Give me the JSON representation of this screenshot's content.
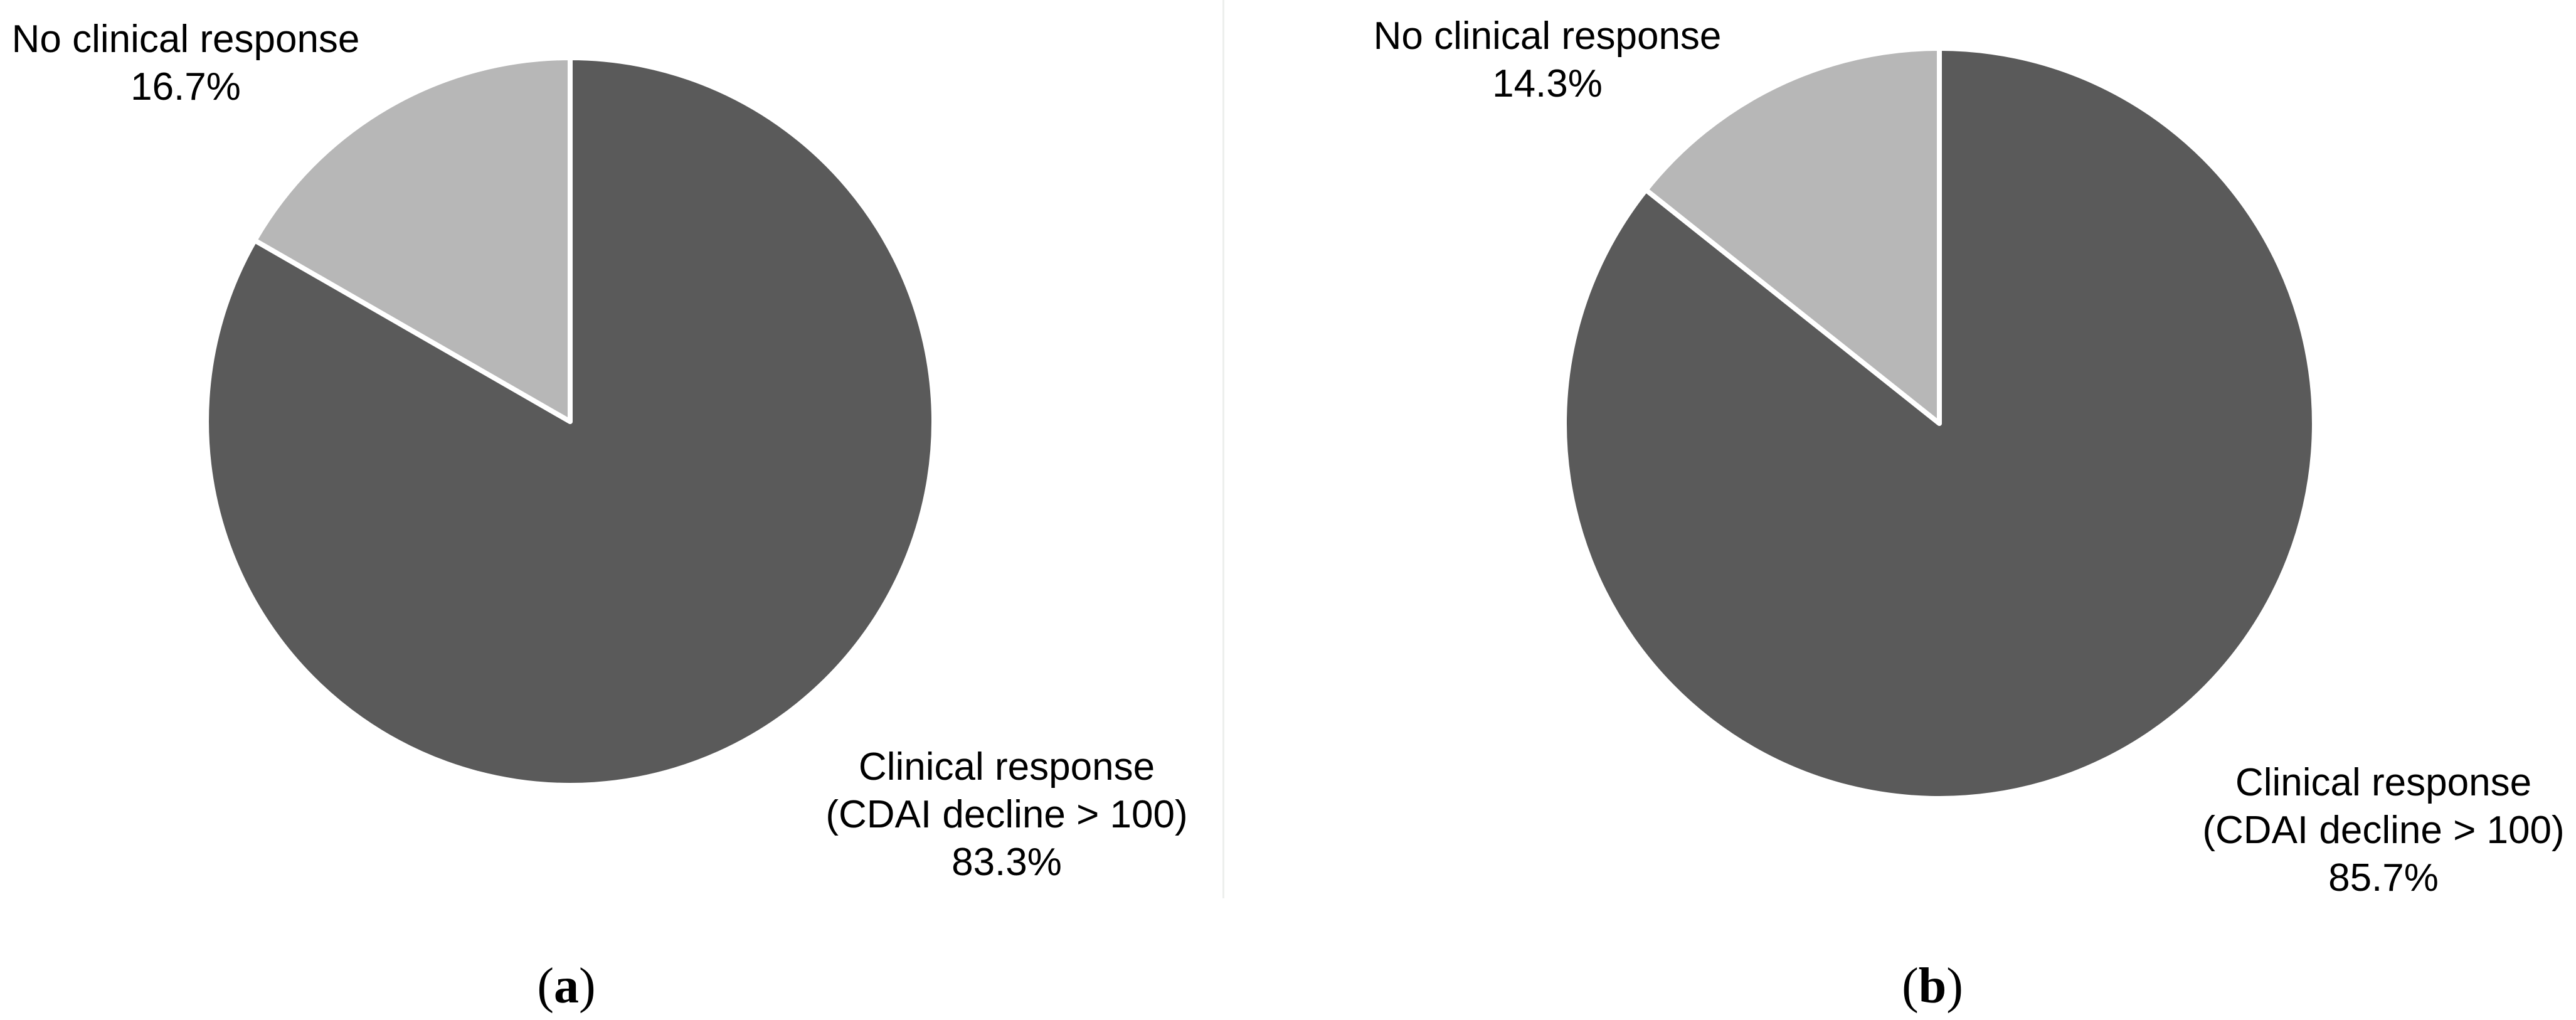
{
  "figure": {
    "background": "#ffffff",
    "panels": [
      {
        "caption": {
          "open": "(",
          "letter": "a",
          "close": ")"
        },
        "labels": [
          {
            "name": "no-clinical-response",
            "lines": [
              "No clinical response",
              "16.7%"
            ]
          },
          {
            "name": "clinical-response",
            "lines": [
              "Clinical response",
              "(CDAI decline > 100)",
              "83.3%"
            ]
          }
        ]
      },
      {
        "caption": {
          "open": "(",
          "letter": "b",
          "close": ")"
        },
        "labels": [
          {
            "name": "no-clinical-response",
            "lines": [
              "No clinical response",
              "14.3%"
            ]
          },
          {
            "name": "clinical-response",
            "lines": [
              "Clinical response",
              "(CDAI decline > 100)",
              "85.7%"
            ]
          }
        ]
      }
    ]
  },
  "chart_data": [
    {
      "type": "pie",
      "panel": "a",
      "title": "",
      "start_angle_deg": 0,
      "direction": "clockwise",
      "slice_border_color": "#ffffff",
      "legend": "none",
      "labels_outside": true,
      "slices": [
        {
          "label": "Clinical response (CDAI decline > 100)",
          "value_pct": 83.3,
          "color": "#5a5a5a"
        },
        {
          "label": "No clinical response",
          "value_pct": 16.7,
          "color": "#b7b7b7"
        }
      ]
    },
    {
      "type": "pie",
      "panel": "b",
      "title": "",
      "start_angle_deg": 0,
      "direction": "clockwise",
      "slice_border_color": "#ffffff",
      "legend": "none",
      "labels_outside": true,
      "slices": [
        {
          "label": "Clinical response (CDAI decline > 100)",
          "value_pct": 85.7,
          "color": "#5a5a5a"
        },
        {
          "label": "No clinical response",
          "value_pct": 14.3,
          "color": "#b7b7b7"
        }
      ]
    }
  ],
  "colors": {
    "dark_slice": "#5a5a5a",
    "light_slice": "#b7b7b7",
    "text": "#000000",
    "divider": "#edefed"
  }
}
